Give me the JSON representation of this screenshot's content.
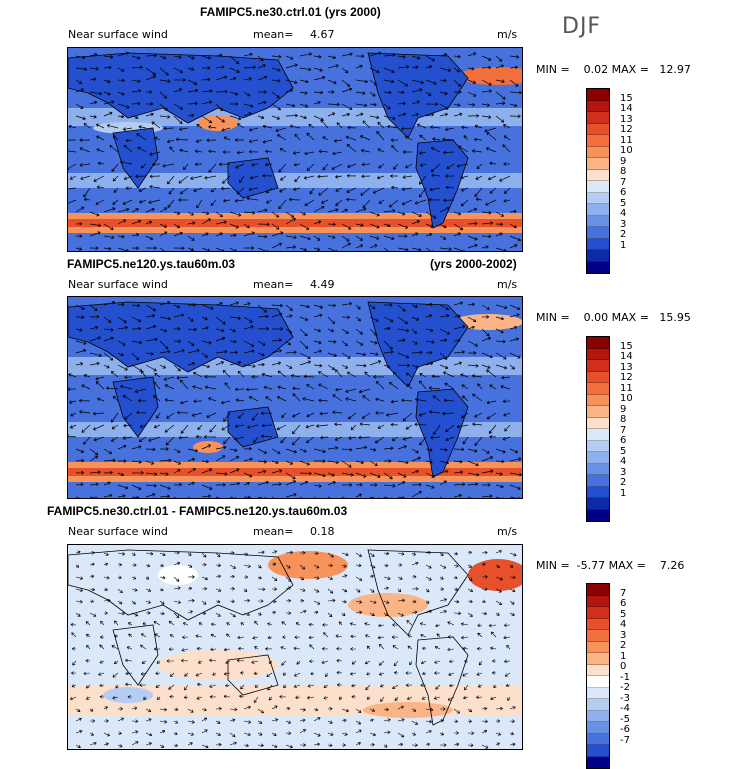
{
  "season": "DJF",
  "panels": [
    {
      "title": "FAMIPC5.ne30.ctrl.01 (yrs 2000)",
      "title_right": "",
      "variable": "Near surface wind",
      "mean_label": "mean=",
      "mean_value": "4.67",
      "units": "m/s",
      "minmax": "MIN =    0.02 MAX =   12.97",
      "colorbar_labels": [
        "15",
        "14",
        "13",
        "12",
        "11",
        "10",
        "9",
        "8",
        "7",
        "6",
        "5",
        "4",
        "3",
        "2",
        "1"
      ],
      "palette": "abs"
    },
    {
      "title": "FAMIPC5.ne120.ys.tau60m.03",
      "title_right": "(yrs 2000-2002)",
      "variable": "Near surface wind",
      "mean_label": "mean=",
      "mean_value": "4.49",
      "units": "m/s",
      "minmax": "MIN =    0.00 MAX =   15.95",
      "colorbar_labels": [
        "15",
        "14",
        "13",
        "12",
        "11",
        "10",
        "9",
        "8",
        "7",
        "6",
        "5",
        "4",
        "3",
        "2",
        "1"
      ],
      "palette": "abs"
    },
    {
      "title": "FAMIPC5.ne30.ctrl.01 - FAMIPC5.ne120.ys.tau60m.03",
      "title_right": "",
      "variable": "Near surface wind",
      "mean_label": "mean=",
      "mean_value": "0.18",
      "units": "m/s",
      "minmax": "MIN =  -5.77 MAX =    7.26",
      "colorbar_labels": [
        "7",
        "6",
        "5",
        "4",
        "3",
        "2",
        "1",
        "0",
        "-1",
        "-2",
        "-3",
        "-4",
        "-5",
        "-6",
        "-7"
      ],
      "palette": "diff"
    }
  ],
  "colors": {
    "abs": [
      "#8b0000",
      "#b2160f",
      "#d0301b",
      "#e6502a",
      "#f2703d",
      "#f7925a",
      "#fab486",
      "#fde0cc",
      "#dbe8fa",
      "#b5cdf2",
      "#8eb0ec",
      "#6a90e4",
      "#4771dd",
      "#2450d0",
      "#0d2aa6",
      "#00008b"
    ],
    "diff": [
      "#8b0000",
      "#b2160f",
      "#d0301b",
      "#e6502a",
      "#f2703d",
      "#f7925a",
      "#fab486",
      "#fde0cc",
      "#ffffff",
      "#dbe8fa",
      "#b5cdf2",
      "#8eb0ec",
      "#6a90e4",
      "#4771dd",
      "#2450d0",
      "#00008b"
    ]
  }
}
